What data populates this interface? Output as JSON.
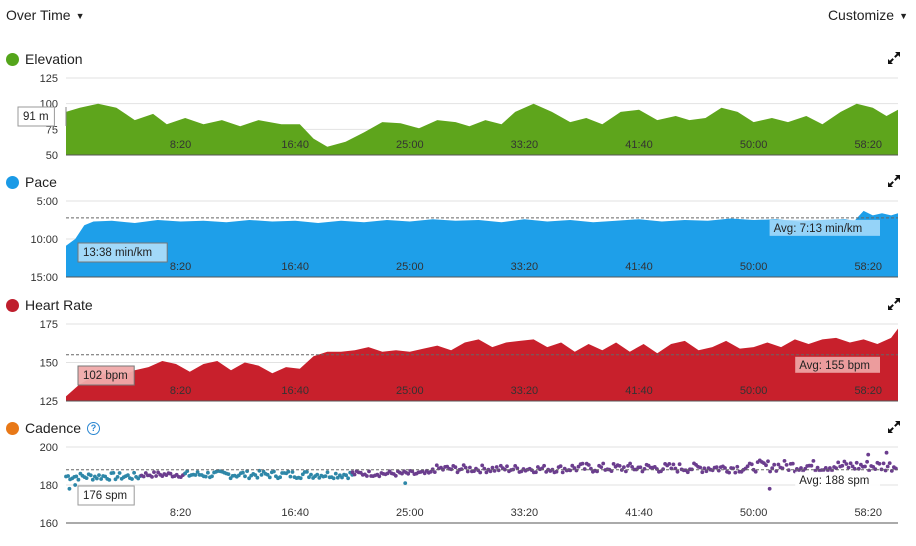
{
  "toolbar": {
    "view_label": "Over Time",
    "customize_label": "Customize"
  },
  "icons": {
    "dropdown": "caret-down-icon",
    "expand": "expand-icon",
    "help": "help-circle-icon"
  },
  "chart_data": [
    {
      "type": "area",
      "title": "Elevation",
      "color": "#5ea51c",
      "dot_color": "#54a51b",
      "y_ticks": [
        "125",
        "100",
        "75",
        "50"
      ],
      "ylim": [
        50,
        125
      ],
      "x_ticks": [
        "8:20",
        "16:40",
        "25:00",
        "33:20",
        "41:40",
        "50:00",
        "58:20"
      ],
      "x_tick_values": [
        500,
        1000,
        1500,
        2000,
        2500,
        3000,
        3500
      ],
      "xlim": [
        0,
        3630
      ],
      "x": [
        0,
        60,
        140,
        220,
        300,
        380,
        440,
        520,
        600,
        680,
        760,
        840,
        940,
        1020,
        1080,
        1140,
        1220,
        1300,
        1380,
        1460,
        1540,
        1620,
        1700,
        1760,
        1830,
        1900,
        1960,
        2040,
        2120,
        2200,
        2270,
        2340,
        2420,
        2500,
        2580,
        2660,
        2720,
        2790,
        2860,
        2930,
        3000,
        3080,
        3150,
        3230,
        3300,
        3380,
        3450,
        3520,
        3580,
        3630
      ],
      "values": [
        92,
        96,
        100,
        96,
        84,
        90,
        80,
        86,
        80,
        84,
        78,
        84,
        80,
        80,
        66,
        58,
        63,
        72,
        82,
        81,
        76,
        84,
        82,
        78,
        84,
        80,
        92,
        100,
        92,
        82,
        86,
        80,
        92,
        94,
        84,
        88,
        84,
        86,
        96,
        92,
        82,
        86,
        82,
        88,
        80,
        92,
        100,
        96,
        88,
        94
      ],
      "tooltip": "91 m"
    },
    {
      "type": "area",
      "title": "Pace",
      "color": "#1e9fe9",
      "dot_color": "#1a9ae6",
      "y_ticks": [
        "5:00",
        "10:00",
        "15:00"
      ],
      "y_tick_values": [
        5,
        10,
        15
      ],
      "ylim": [
        5,
        15
      ],
      "baseline": 15,
      "x_ticks": [
        "8:20",
        "16:40",
        "25:00",
        "33:20",
        "41:40",
        "50:00",
        "58:20"
      ],
      "x_tick_values": [
        500,
        1000,
        1500,
        2000,
        2500,
        3000,
        3500
      ],
      "xlim": [
        0,
        3630
      ],
      "x": [
        0,
        40,
        80,
        120,
        200,
        300,
        400,
        500,
        600,
        700,
        800,
        900,
        1000,
        1100,
        1200,
        1300,
        1400,
        1500,
        1600,
        1700,
        1800,
        1900,
        2000,
        2100,
        2200,
        2300,
        2400,
        2500,
        2600,
        2700,
        2800,
        2900,
        3000,
        3100,
        3200,
        3300,
        3400,
        3440,
        3480,
        3520,
        3560,
        3600,
        3630
      ],
      "values": [
        10.9,
        10.0,
        8.2,
        7.7,
        7.6,
        7.9,
        7.5,
        7.7,
        7.6,
        7.8,
        7.5,
        7.7,
        7.6,
        7.9,
        7.6,
        7.8,
        7.5,
        7.7,
        7.4,
        7.6,
        7.5,
        7.8,
        7.4,
        7.7,
        7.5,
        7.8,
        7.6,
        7.4,
        7.7,
        7.5,
        7.6,
        7.3,
        7.5,
        7.4,
        7.7,
        7.5,
        7.4,
        7.6,
        6.3,
        6.9,
        6.6,
        6.9,
        6.6
      ],
      "average": 7.217,
      "average_label": "Avg: 7:13 min/km",
      "tooltip": "13:38 min/km"
    },
    {
      "type": "area",
      "title": "Heart Rate",
      "color": "#c8202c",
      "dot_color": "#bf1e2d",
      "y_ticks": [
        "175",
        "150",
        "125"
      ],
      "ylim": [
        125,
        175
      ],
      "x_ticks": [
        "8:20",
        "16:40",
        "25:00",
        "33:20",
        "41:40",
        "50:00",
        "58:20"
      ],
      "x_tick_values": [
        500,
        1000,
        1500,
        2000,
        2500,
        3000,
        3500
      ],
      "xlim": [
        0,
        3630
      ],
      "x": [
        0,
        60,
        120,
        180,
        240,
        300,
        360,
        420,
        480,
        540,
        600,
        660,
        720,
        780,
        840,
        900,
        960,
        1020,
        1080,
        1140,
        1200,
        1260,
        1320,
        1380,
        1440,
        1500,
        1560,
        1620,
        1680,
        1740,
        1800,
        1860,
        1920,
        1980,
        2040,
        2100,
        2160,
        2220,
        2280,
        2340,
        2400,
        2460,
        2520,
        2580,
        2640,
        2700,
        2760,
        2820,
        2880,
        2940,
        3000,
        3060,
        3120,
        3180,
        3240,
        3300,
        3360,
        3420,
        3480,
        3540,
        3600,
        3630
      ],
      "values": [
        128,
        136,
        141,
        143,
        141,
        145,
        147,
        151,
        149,
        144,
        149,
        151,
        145,
        150,
        148,
        143,
        147,
        146,
        154,
        157,
        157,
        158,
        160,
        157,
        158,
        157,
        159,
        161,
        158,
        163,
        165,
        160,
        163,
        164,
        165,
        160,
        163,
        157,
        162,
        158,
        163,
        157,
        162,
        156,
        162,
        164,
        158,
        160,
        164,
        159,
        160,
        163,
        160,
        165,
        162,
        165,
        166,
        163,
        165,
        162,
        166,
        172
      ],
      "average": 155,
      "average_label": "Avg: 155 bpm",
      "tooltip": "102 bpm"
    },
    {
      "type": "scatter",
      "title": "Cadence",
      "color": "#6b3d8e",
      "alt_color": "#2e87a8",
      "dot_color": "#e87817",
      "y_ticks": [
        "200",
        "180",
        "160"
      ],
      "ylim": [
        160,
        200
      ],
      "x_ticks": [
        "8:20",
        "16:40",
        "25:00",
        "33:20",
        "41:40",
        "50:00",
        "58:20"
      ],
      "x_tick_values": [
        500,
        1000,
        1500,
        2000,
        2500,
        3000,
        3500
      ],
      "xlim": [
        0,
        3630
      ],
      "segments": [
        {
          "x0": 0,
          "x1": 330,
          "mean": 184.5,
          "spread": 2,
          "color": "alt"
        },
        {
          "x0": 330,
          "x1": 520,
          "mean": 185.5,
          "spread": 1.5,
          "color": "main"
        },
        {
          "x0": 520,
          "x1": 1250,
          "mean": 185.5,
          "spread": 2,
          "color": "alt"
        },
        {
          "x0": 1250,
          "x1": 1600,
          "mean": 186,
          "spread": 1.5,
          "color": "main"
        },
        {
          "x0": 1600,
          "x1": 2200,
          "mean": 188.5,
          "spread": 2,
          "color": "main"
        },
        {
          "x0": 2200,
          "x1": 3000,
          "mean": 189,
          "spread": 2.5,
          "color": "main"
        },
        {
          "x0": 3000,
          "x1": 3630,
          "mean": 190,
          "spread": 3,
          "color": "main"
        }
      ],
      "outliers": [
        [
          15,
          178
        ],
        [
          40,
          180
        ],
        [
          1480,
          181
        ],
        [
          3070,
          178
        ],
        [
          3500,
          196
        ],
        [
          3580,
          197
        ]
      ],
      "average": 188,
      "average_label": "Avg: 188 spm",
      "tooltip": "176 spm"
    }
  ]
}
